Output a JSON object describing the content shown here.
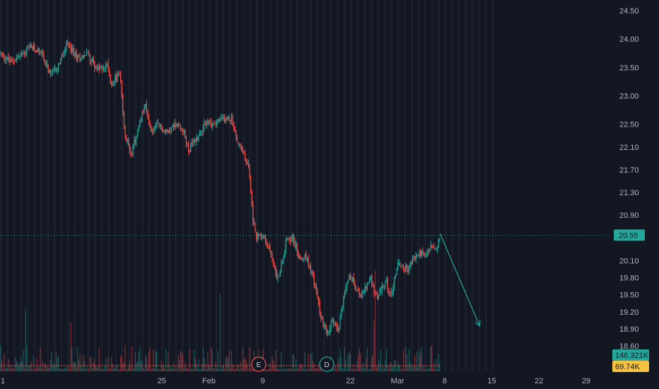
{
  "chart_data": {
    "type": "candlestick",
    "colors": {
      "background": "#131722",
      "up": "#26a69a",
      "down": "#ef5350",
      "session_band": "#1b2130",
      "axis_text": "#b2b5be",
      "price_line": "#26a69a",
      "volume_line": "#ef5350",
      "projection": "#26a69a"
    },
    "y_axis": {
      "ticks": [
        "24.50",
        "24.00",
        "23.50",
        "23.00",
        "22.50",
        "22.10",
        "21.70",
        "21.30",
        "20.90",
        "20.55",
        "20.10",
        "19.80",
        "19.50",
        "19.20",
        "18.90",
        "18.60"
      ],
      "range": [
        18.45,
        24.62
      ],
      "position": "right"
    },
    "x_axis": {
      "ticks": [
        {
          "label": "1",
          "day": 0
        },
        {
          "label": "25",
          "day": 24
        },
        {
          "label": "Feb",
          "day": 31
        },
        {
          "label": "9",
          "day": 39
        },
        {
          "label": "22",
          "day": 52
        },
        {
          "label": "Mar",
          "day": 59
        },
        {
          "label": "8",
          "day": 66
        },
        {
          "label": "15",
          "day": 73
        },
        {
          "label": "22",
          "day": 80
        },
        {
          "label": "29",
          "day": 87
        }
      ],
      "range": [
        0,
        89
      ]
    },
    "price_path": [
      [
        0,
        23.75
      ],
      [
        1.5,
        23.6
      ],
      [
        3,
        23.7
      ],
      [
        4.5,
        23.85
      ],
      [
        6,
        23.8
      ],
      [
        7.5,
        23.35
      ],
      [
        8.5,
        23.5
      ],
      [
        10,
        23.9
      ],
      [
        11.5,
        23.65
      ],
      [
        13,
        23.75
      ],
      [
        14.5,
        23.45
      ],
      [
        16,
        23.55
      ],
      [
        16.5,
        23.2
      ],
      [
        17.8,
        23.4
      ],
      [
        18.5,
        22.3
      ],
      [
        19.5,
        22.0
      ],
      [
        20.5,
        22.4
      ],
      [
        21.5,
        22.85
      ],
      [
        22.5,
        22.35
      ],
      [
        23.5,
        22.5
      ],
      [
        24.5,
        22.35
      ],
      [
        26,
        22.5
      ],
      [
        27,
        22.45
      ],
      [
        28,
        22.05
      ],
      [
        29.5,
        22.3
      ],
      [
        30.5,
        22.55
      ],
      [
        31.5,
        22.5
      ],
      [
        32.5,
        22.55
      ],
      [
        33.5,
        22.6
      ],
      [
        34.5,
        22.6
      ],
      [
        35,
        22.25
      ],
      [
        36,
        22.0
      ],
      [
        37,
        21.7
      ],
      [
        37.5,
        20.85
      ],
      [
        38,
        20.5
      ],
      [
        39,
        20.6
      ],
      [
        39.5,
        20.4
      ],
      [
        40.2,
        20.25
      ],
      [
        41.2,
        19.75
      ],
      [
        41.8,
        20.05
      ],
      [
        42.6,
        20.5
      ],
      [
        43.5,
        20.5
      ],
      [
        44.3,
        20.2
      ],
      [
        45.5,
        20.15
      ],
      [
        46.3,
        19.9
      ],
      [
        47,
        19.5
      ],
      [
        47.8,
        19.05
      ],
      [
        48.6,
        18.75
      ],
      [
        49.3,
        19.05
      ],
      [
        50.2,
        18.85
      ],
      [
        51,
        19.5
      ],
      [
        51.8,
        19.85
      ],
      [
        52.4,
        19.75
      ],
      [
        53.2,
        19.5
      ],
      [
        54,
        19.55
      ],
      [
        55,
        19.8
      ],
      [
        55.8,
        19.45
      ],
      [
        56.5,
        19.55
      ],
      [
        57.3,
        19.75
      ],
      [
        58,
        19.45
      ],
      [
        59,
        20.05
      ],
      [
        60.5,
        19.95
      ],
      [
        61.5,
        20.15
      ],
      [
        62.5,
        20.25
      ],
      [
        63,
        20.15
      ],
      [
        64,
        20.35
      ],
      [
        64.8,
        20.25
      ],
      [
        65.3,
        20.55
      ]
    ],
    "projection": {
      "from": [
        65.3,
        20.58
      ],
      "to": [
        71.2,
        18.95
      ]
    },
    "last_price": "20.55",
    "volume_labels": [
      "146.321K",
      "69.74K"
    ],
    "event_markers": [
      {
        "label": "E",
        "day": 38.4,
        "color": "#ef5350"
      },
      {
        "label": "D",
        "day": 48.5,
        "color": "#26a69a"
      }
    ]
  }
}
